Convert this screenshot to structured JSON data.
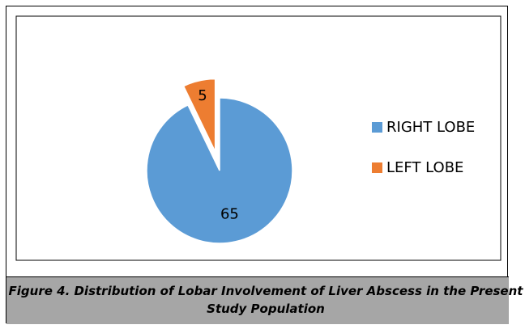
{
  "chart_data": {
    "type": "pie",
    "categories": [
      "RIGHT LOBE",
      "LEFT LOBE"
    ],
    "values": [
      65,
      5
    ],
    "colors": [
      "#5b9bd5",
      "#ed7d31"
    ],
    "legend": "right",
    "caption": "Figure 4. Distribution of Lobar Involvement of Liver Abscess in the Present Study Population"
  }
}
